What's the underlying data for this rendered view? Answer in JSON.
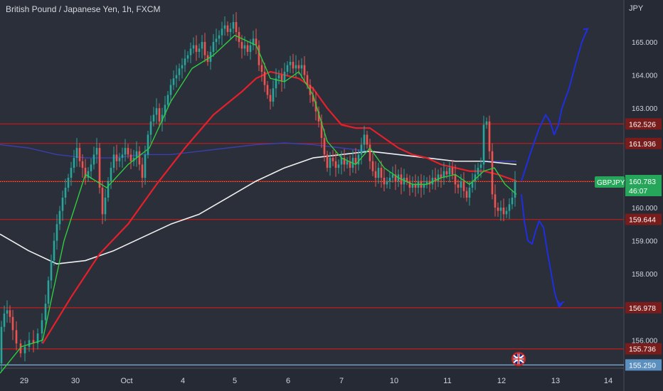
{
  "header": {
    "title": "British Pound / Japanese Yen, 1h, FXCM",
    "currency": "JPY"
  },
  "colors": {
    "background": "#2b2f3a",
    "up_candle": "#26a69a",
    "down_candle": "#ef5350",
    "level_line": "#b71c1c",
    "sma_fast": "#2ecc40",
    "sma_mid": "#e5202a",
    "sma_slow": "#f0f0f0",
    "sma_very_slow": "#3a3fb0",
    "projection": "#1f2fe0",
    "ticker_badge": "#26a65a",
    "level_label_bg": "#781c1c",
    "bottom_label_bg": "#5b8fc0"
  },
  "chart_data": {
    "type": "candlestick",
    "symbol": "GBPJPY",
    "price_ylim": [
      155.1,
      166.1
    ],
    "x_ticks": [
      "29",
      "30",
      "Oct",
      "4",
      "5",
      "6",
      "7",
      "10",
      "11",
      "12",
      "13",
      "14"
    ],
    "y_ticks": [
      "165.000",
      "164.000",
      "163.000",
      "160.000",
      "159.000",
      "158.000",
      "156.000"
    ],
    "current_price": "160.783",
    "countdown": "46:07",
    "levels": [
      {
        "label": "162.526",
        "value": 162.526
      },
      {
        "label": "161.936",
        "value": 161.936
      },
      {
        "label": "160.790",
        "value": 160.79
      },
      {
        "label": "159.644",
        "value": 159.644
      },
      {
        "label": "156.978",
        "value": 156.978
      },
      {
        "label": "155.736",
        "value": 155.736
      },
      {
        "label": "155.250",
        "value": 155.25
      }
    ],
    "price_path": [
      [
        0,
        155.3
      ],
      [
        4,
        156.4
      ],
      [
        8,
        156.8
      ],
      [
        12,
        156.9
      ],
      [
        16,
        156.7
      ],
      [
        20,
        156.3
      ],
      [
        26,
        155.9
      ],
      [
        32,
        155.6
      ],
      [
        38,
        155.8
      ],
      [
        44,
        156.0
      ],
      [
        50,
        155.9
      ],
      [
        56,
        156.2
      ],
      [
        62,
        156.6
      ],
      [
        66,
        157.1
      ],
      [
        70,
        157.8
      ],
      [
        74,
        158.4
      ],
      [
        78,
        159.0
      ],
      [
        82,
        159.5
      ],
      [
        86,
        159.9
      ],
      [
        90,
        160.3
      ],
      [
        94,
        160.6
      ],
      [
        98,
        160.9
      ],
      [
        102,
        161.2
      ],
      [
        106,
        161.5
      ],
      [
        110,
        161.8
      ],
      [
        114,
        161.4
      ],
      [
        118,
        161.2
      ],
      [
        122,
        160.9
      ],
      [
        126,
        161.1
      ],
      [
        130,
        161.3
      ],
      [
        134,
        161.6
      ],
      [
        138,
        161.8
      ],
      [
        142,
        160.6
      ],
      [
        146,
        159.8
      ],
      [
        150,
        160.3
      ],
      [
        154,
        160.8
      ],
      [
        158,
        161.2
      ],
      [
        162,
        161.6
      ],
      [
        166,
        161.4
      ],
      [
        170,
        161.5
      ],
      [
        174,
        161.6
      ],
      [
        178,
        161.8
      ],
      [
        182,
        161.6
      ],
      [
        186,
        161.4
      ],
      [
        190,
        161.5
      ],
      [
        194,
        161.7
      ],
      [
        198,
        161.3
      ],
      [
        202,
        160.9
      ],
      [
        206,
        161.6
      ],
      [
        210,
        162.2
      ],
      [
        214,
        162.6
      ],
      [
        218,
        162.8
      ],
      [
        222,
        163.0
      ],
      [
        226,
        162.6
      ],
      [
        230,
        162.8
      ],
      [
        234,
        163.1
      ],
      [
        238,
        163.4
      ],
      [
        242,
        163.7
      ],
      [
        246,
        163.9
      ],
      [
        250,
        164.0
      ],
      [
        254,
        164.2
      ],
      [
        258,
        164.3
      ],
      [
        262,
        164.5
      ],
      [
        266,
        164.6
      ],
      [
        270,
        164.8
      ],
      [
        274,
        164.9
      ],
      [
        278,
        164.7
      ],
      [
        282,
        164.8
      ],
      [
        286,
        165.0
      ],
      [
        290,
        164.6
      ],
      [
        294,
        164.4
      ],
      [
        298,
        164.7
      ],
      [
        302,
        165.0
      ],
      [
        306,
        165.1
      ],
      [
        310,
        165.2
      ],
      [
        314,
        165.4
      ],
      [
        318,
        165.5
      ],
      [
        322,
        165.3
      ],
      [
        326,
        165.4
      ],
      [
        330,
        165.6
      ],
      [
        334,
        165.3
      ],
      [
        338,
        165.0
      ],
      [
        342,
        164.8
      ],
      [
        346,
        164.9
      ],
      [
        350,
        164.7
      ],
      [
        354,
        164.9
      ],
      [
        358,
        165.1
      ],
      [
        362,
        164.9
      ],
      [
        366,
        164.3
      ],
      [
        370,
        164.1
      ],
      [
        374,
        163.7
      ],
      [
        378,
        163.4
      ],
      [
        382,
        163.2
      ],
      [
        386,
        163.6
      ],
      [
        390,
        163.9
      ],
      [
        394,
        164.0
      ],
      [
        398,
        163.8
      ],
      [
        402,
        164.1
      ],
      [
        406,
        164.3
      ],
      [
        410,
        164.4
      ],
      [
        414,
        164.2
      ],
      [
        418,
        164.3
      ],
      [
        422,
        164.2
      ],
      [
        426,
        164.3
      ],
      [
        430,
        164.0
      ],
      [
        434,
        163.7
      ],
      [
        438,
        163.4
      ],
      [
        442,
        163.2
      ],
      [
        446,
        162.9
      ],
      [
        450,
        162.6
      ],
      [
        454,
        162.1
      ],
      [
        458,
        161.6
      ],
      [
        462,
        161.2
      ],
      [
        466,
        161.5
      ],
      [
        470,
        161.4
      ],
      [
        474,
        161.2
      ],
      [
        478,
        161.3
      ],
      [
        482,
        161.5
      ],
      [
        486,
        161.3
      ],
      [
        490,
        161.4
      ],
      [
        494,
        161.2
      ],
      [
        498,
        161.5
      ],
      [
        502,
        161.3
      ],
      [
        506,
        161.6
      ],
      [
        510,
        161.9
      ],
      [
        514,
        162.2
      ],
      [
        518,
        161.9
      ],
      [
        522,
        161.4
      ],
      [
        526,
        161.1
      ],
      [
        530,
        160.9
      ],
      [
        534,
        161.2
      ],
      [
        538,
        160.9
      ],
      [
        542,
        160.7
      ],
      [
        546,
        160.8
      ],
      [
        550,
        160.9
      ],
      [
        554,
        161.0
      ],
      [
        558,
        160.8
      ],
      [
        562,
        161.0
      ],
      [
        566,
        160.7
      ],
      [
        570,
        160.9
      ],
      [
        574,
        160.8
      ],
      [
        578,
        160.6
      ],
      [
        582,
        160.7
      ],
      [
        586,
        160.6
      ],
      [
        590,
        160.8
      ],
      [
        594,
        160.6
      ],
      [
        598,
        160.7
      ],
      [
        602,
        160.8
      ],
      [
        606,
        160.7
      ],
      [
        610,
        160.9
      ],
      [
        614,
        160.8
      ],
      [
        618,
        161.0
      ],
      [
        622,
        160.9
      ],
      [
        626,
        161.1
      ],
      [
        630,
        161.0
      ],
      [
        634,
        161.2
      ],
      [
        638,
        161.0
      ],
      [
        642,
        160.7
      ],
      [
        646,
        160.6
      ],
      [
        650,
        160.8
      ],
      [
        654,
        160.5
      ],
      [
        658,
        160.3
      ],
      [
        662,
        160.6
      ],
      [
        666,
        160.8
      ],
      [
        670,
        161.0
      ],
      [
        674,
        161.2
      ],
      [
        678,
        161.3
      ],
      [
        682,
        162.5
      ],
      [
        686,
        162.6
      ],
      [
        690,
        161.7
      ],
      [
        694,
        160.4
      ],
      [
        698,
        160.0
      ],
      [
        702,
        159.9
      ],
      [
        706,
        160.0
      ],
      [
        710,
        159.8
      ],
      [
        714,
        159.9
      ],
      [
        718,
        160.1
      ],
      [
        722,
        160.3
      ],
      [
        726,
        160.8
      ]
    ],
    "sma_fast": [
      [
        0,
        155.0
      ],
      [
        30,
        155.8
      ],
      [
        60,
        156.0
      ],
      [
        90,
        159.0
      ],
      [
        120,
        161.0
      ],
      [
        150,
        160.6
      ],
      [
        180,
        161.3
      ],
      [
        210,
        161.8
      ],
      [
        240,
        163.2
      ],
      [
        270,
        164.2
      ],
      [
        300,
        164.6
      ],
      [
        330,
        165.2
      ],
      [
        360,
        164.9
      ],
      [
        380,
        163.9
      ],
      [
        400,
        163.8
      ],
      [
        420,
        164.1
      ],
      [
        440,
        163.4
      ],
      [
        460,
        162.0
      ],
      [
        480,
        161.5
      ],
      [
        500,
        161.3
      ],
      [
        520,
        161.8
      ],
      [
        540,
        161.2
      ],
      [
        560,
        160.9
      ],
      [
        580,
        160.7
      ],
      [
        600,
        160.7
      ],
      [
        620,
        160.9
      ],
      [
        640,
        161.0
      ],
      [
        660,
        160.7
      ],
      [
        680,
        161.1
      ],
      [
        695,
        161.2
      ],
      [
        710,
        160.7
      ],
      [
        726,
        160.4
      ]
    ],
    "sma_mid": [
      [
        60,
        155.9
      ],
      [
        100,
        157.3
      ],
      [
        140,
        158.6
      ],
      [
        180,
        159.5
      ],
      [
        220,
        160.7
      ],
      [
        260,
        161.8
      ],
      [
        300,
        162.8
      ],
      [
        340,
        163.5
      ],
      [
        360,
        163.9
      ],
      [
        380,
        164.1
      ],
      [
        400,
        164.0
      ],
      [
        420,
        163.9
      ],
      [
        440,
        163.6
      ],
      [
        460,
        163.0
      ],
      [
        480,
        162.5
      ],
      [
        500,
        162.4
      ],
      [
        520,
        162.4
      ],
      [
        540,
        162.1
      ],
      [
        560,
        161.8
      ],
      [
        580,
        161.6
      ],
      [
        600,
        161.5
      ],
      [
        620,
        161.3
      ],
      [
        640,
        161.2
      ],
      [
        660,
        161.1
      ],
      [
        680,
        161.1
      ],
      [
        700,
        161.0
      ],
      [
        726,
        160.8
      ]
    ],
    "sma_slow": [
      [
        0,
        159.2
      ],
      [
        40,
        158.7
      ],
      [
        80,
        158.3
      ],
      [
        120,
        158.4
      ],
      [
        160,
        158.7
      ],
      [
        200,
        159.1
      ],
      [
        240,
        159.5
      ],
      [
        280,
        159.8
      ],
      [
        320,
        160.3
      ],
      [
        360,
        160.8
      ],
      [
        400,
        161.2
      ],
      [
        440,
        161.5
      ],
      [
        480,
        161.6
      ],
      [
        520,
        161.7
      ],
      [
        560,
        161.6
      ],
      [
        600,
        161.5
      ],
      [
        640,
        161.4
      ],
      [
        680,
        161.4
      ],
      [
        726,
        161.3
      ]
    ],
    "sma_very_slow": [
      [
        0,
        161.9
      ],
      [
        40,
        161.8
      ],
      [
        80,
        161.6
      ],
      [
        120,
        161.5
      ],
      [
        160,
        161.5
      ],
      [
        200,
        161.6
      ],
      [
        240,
        161.6
      ],
      [
        280,
        161.7
      ],
      [
        320,
        161.8
      ],
      [
        360,
        161.9
      ],
      [
        400,
        161.95
      ],
      [
        440,
        161.9
      ],
      [
        480,
        161.8
      ],
      [
        520,
        161.7
      ],
      [
        560,
        161.6
      ],
      [
        600,
        161.5
      ],
      [
        640,
        161.4
      ],
      [
        680,
        161.4
      ],
      [
        726,
        161.4
      ]
    ],
    "projection_up": [
      [
        733,
        160.8
      ],
      [
        745,
        161.6
      ],
      [
        758,
        162.4
      ],
      [
        767,
        162.8
      ],
      [
        773,
        162.6
      ],
      [
        779,
        162.2
      ],
      [
        785,
        162.5
      ],
      [
        790,
        163.0
      ],
      [
        800,
        163.6
      ],
      [
        810,
        164.4
      ],
      [
        818,
        165.0
      ],
      [
        826,
        165.4
      ]
    ],
    "projection_down": [
      [
        733,
        160.4
      ],
      [
        737,
        159.6
      ],
      [
        742,
        159.0
      ],
      [
        748,
        158.9
      ],
      [
        753,
        159.3
      ],
      [
        758,
        159.6
      ],
      [
        764,
        159.4
      ],
      [
        770,
        158.6
      ],
      [
        775,
        158.0
      ],
      [
        780,
        157.4
      ],
      [
        786,
        157.0
      ],
      [
        790,
        157.1
      ]
    ]
  }
}
